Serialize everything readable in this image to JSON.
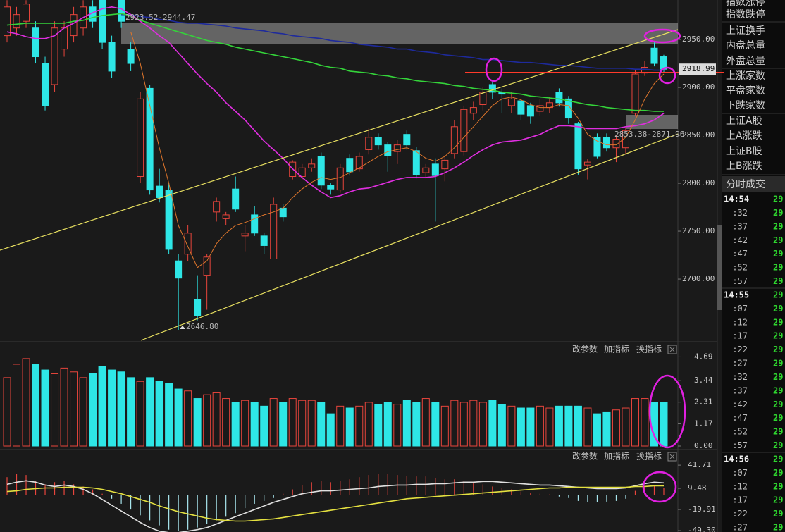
{
  "chart_data": [
    {
      "type": "candlestick",
      "up_color": "#e8453c",
      "down_color": "#2ee6e6",
      "ylim": [
        2634.6,
        2991.2
      ],
      "yticks": [
        {
          "value": 2950,
          "label": "2950.00"
        },
        {
          "value": 2900,
          "label": "2900.00"
        },
        {
          "value": 2850,
          "label": "2850.00"
        },
        {
          "value": 2800,
          "label": "2800.00"
        },
        {
          "value": 2750,
          "label": "2750.00"
        },
        {
          "value": 2700,
          "label": "2700.00"
        }
      ],
      "open": [
        2954,
        2962,
        2969,
        2962,
        2925,
        2903,
        2940,
        2954,
        2962,
        2984,
        2991,
        2947,
        2991,
        2940,
        2807,
        2899,
        2797,
        2793,
        2719,
        2726,
        2679,
        2704,
        2770,
        2763,
        2794,
        2745,
        2767,
        2745,
        2721,
        2774,
        2807,
        2807,
        2816,
        2828,
        2798,
        2793,
        2826,
        2815,
        2835,
        2848,
        2840,
        2833,
        2851,
        2834,
        2811,
        2820,
        2815,
        2831,
        2833,
        2873,
        2882,
        2903,
        2895,
        2881,
        2886,
        2881,
        2875,
        2879,
        2895,
        2888,
        2862,
        2819,
        2848,
        2848,
        2837,
        2837,
        2873,
        2915,
        2941,
        2932
      ],
      "high": [
        2991,
        2984,
        2991,
        2969,
        2932,
        2969,
        2969,
        2984,
        2991,
        2991,
        2991,
        2954,
        2991,
        2947,
        2895,
        2903,
        2815,
        2800,
        2726,
        2756,
        2704,
        2726,
        2785,
        2770,
        2807,
        2756,
        2776,
        2748,
        2785,
        2778,
        2824,
        2820,
        2826,
        2832,
        2800,
        2820,
        2830,
        2832,
        2857,
        2852,
        2843,
        2845,
        2855,
        2838,
        2820,
        2826,
        2829,
        2866,
        2881,
        2885,
        2900,
        2908,
        2899,
        2895,
        2888,
        2884,
        2888,
        2890,
        2899,
        2891,
        2864,
        2825,
        2852,
        2852,
        2850,
        2858,
        2918,
        2928,
        2947,
        2934
      ],
      "low": [
        2947,
        2954,
        2962,
        2925,
        2876,
        2895,
        2932,
        2947,
        2954,
        2962,
        2940,
        2910,
        2962,
        2917,
        2800,
        2788,
        2780,
        2726,
        2646.8,
        2719,
        2657,
        2668,
        2760,
        2756,
        2770,
        2729,
        2745,
        2726,
        2721,
        2760,
        2804,
        2804,
        2812,
        2794,
        2788,
        2790,
        2808,
        2812,
        2830,
        2835,
        2812,
        2820,
        2835,
        2805,
        2805,
        2760,
        2802,
        2826,
        2829,
        2866,
        2876,
        2888,
        2873,
        2873,
        2866,
        2862,
        2870,
        2873,
        2880,
        2862,
        2809,
        2804,
        2826,
        2833,
        2822,
        2830,
        2870,
        2912,
        2922,
        2915
      ],
      "close": [
        2984,
        2976,
        2987,
        2932,
        2881,
        2962,
        2962,
        2976,
        2984,
        2969,
        2947,
        2917,
        2969,
        2925,
        2888,
        2793,
        2785,
        2731,
        2701,
        2748,
        2662,
        2723,
        2781,
        2767,
        2773,
        2748,
        2748,
        2735,
        2778,
        2765,
        2822,
        2816,
        2820,
        2798,
        2794,
        2816,
        2812,
        2828,
        2848,
        2840,
        2829,
        2840,
        2840,
        2809,
        2816,
        2808,
        2824,
        2859,
        2877,
        2879,
        2895,
        2895,
        2893,
        2888,
        2872,
        2870,
        2881,
        2884,
        2884,
        2868,
        2815,
        2822,
        2828,
        2837,
        2846,
        2855,
        2914,
        2921,
        2925,
        2919
      ],
      "lines": [
        {
          "color": "#1e2a9c",
          "values": [
            null,
            null,
            null,
            null,
            null,
            null,
            null,
            null,
            null,
            null,
            null,
            null,
            2976,
            2976,
            2974,
            2973,
            2971,
            2970,
            2968,
            2967,
            2967,
            2966,
            2965,
            2964,
            2962,
            2961,
            2960,
            2959,
            2957,
            2956,
            2954,
            2953,
            2952,
            2951,
            2949,
            2948,
            2947,
            2945,
            2944,
            2943,
            2942,
            2940,
            2940,
            2938,
            2937,
            2936,
            2934,
            2933,
            2932,
            2931,
            2929,
            2929,
            2928,
            2927,
            2926,
            2926,
            2925,
            2924,
            2923,
            2923,
            2922,
            2921,
            2920,
            2920,
            2920,
            2920,
            2919,
            2919,
            2918,
            2918
          ]
        },
        {
          "color": "#34d43a",
          "values": [
            2965,
            2966,
            2967,
            2967,
            2967,
            2967,
            2967,
            2969,
            2970,
            2973,
            2975,
            2976,
            2977,
            2975,
            2970,
            2967,
            2964,
            2961,
            2958,
            2955,
            2952,
            2949,
            2947,
            2945,
            2942,
            2940,
            2938,
            2936,
            2934,
            2932,
            2930,
            2928,
            2926,
            2923,
            2921,
            2920,
            2917,
            2916,
            2915,
            2913,
            2912,
            2910,
            2909,
            2907,
            2906,
            2905,
            2904,
            2902,
            2901,
            2899,
            2898,
            2897,
            2895,
            2894,
            2893,
            2891,
            2890,
            2889,
            2888,
            2886,
            2884,
            2882,
            2881,
            2879,
            2878,
            2877,
            2876,
            2876,
            2875,
            2875
          ]
        },
        {
          "color": "#e02ee0",
          "values": [
            2958,
            2956,
            2953,
            2951,
            2951,
            2954,
            2962,
            2967,
            2973,
            2978,
            2982,
            2984,
            2982,
            2976,
            2969,
            2962,
            2954,
            2947,
            2936,
            2925,
            2914,
            2904,
            2895,
            2884,
            2875,
            2866,
            2855,
            2844,
            2835,
            2826,
            2815,
            2806,
            2798,
            2791,
            2785,
            2787,
            2791,
            2794,
            2795,
            2798,
            2801,
            2804,
            2806,
            2806,
            2806,
            2807,
            2811,
            2816,
            2822,
            2829,
            2835,
            2840,
            2843,
            2844,
            2845,
            2848,
            2851,
            2856,
            2860,
            2860,
            2859,
            2857,
            2857,
            2857,
            2857,
            2859,
            2860,
            2862,
            2866,
            2873
          ]
        },
        {
          "color": "#e0762c",
          "values": [
            null,
            null,
            null,
            null,
            null,
            null,
            null,
            null,
            null,
            null,
            null,
            null,
            null,
            2958,
            2925,
            2881,
            2837,
            2800,
            2756,
            2734,
            2712,
            2719,
            2737,
            2748,
            2756,
            2759,
            2763,
            2767,
            2770,
            2774,
            2785,
            2794,
            2801,
            2806,
            2804,
            2806,
            2811,
            2816,
            2822,
            2828,
            2833,
            2835,
            2837,
            2833,
            2826,
            2823,
            2828,
            2837,
            2848,
            2859,
            2870,
            2881,
            2888,
            2890,
            2887,
            2882,
            2879,
            2879,
            2882,
            2881,
            2868,
            2851,
            2844,
            2840,
            2840,
            2848,
            2866,
            2888,
            2904,
            2914
          ]
        }
      ],
      "last_price": 2918.99,
      "zone_labels": [
        "2923.52-2944.47",
        "2853.38-2871.96"
      ],
      "low_label": "2646.80"
    },
    {
      "type": "bar",
      "up_color": "#e8453c",
      "down_color": "#2ee6e6",
      "ylim": [
        0,
        5.3
      ],
      "yticks": [
        4.69,
        3.44,
        2.31,
        1.17,
        {
          "value": 0,
          "label": "0.00"
        }
      ],
      "values": [
        3.6,
        4.3,
        4.6,
        4.3,
        4.0,
        3.8,
        4.1,
        3.9,
        3.6,
        3.8,
        4.2,
        4.0,
        3.9,
        3.6,
        3.4,
        3.6,
        3.4,
        3.3,
        3.0,
        2.9,
        2.5,
        2.7,
        2.8,
        2.5,
        2.3,
        2.4,
        2.3,
        2.1,
        2.5,
        2.3,
        2.5,
        2.4,
        2.4,
        2.3,
        1.7,
        2.1,
        2.0,
        2.1,
        2.3,
        2.2,
        2.3,
        2.2,
        2.4,
        2.3,
        2.5,
        2.3,
        2.1,
        2.4,
        2.3,
        2.4,
        2.3,
        2.4,
        2.2,
        2.1,
        2.0,
        2.0,
        2.1,
        2.0,
        2.1,
        2.1,
        2.1,
        2.0,
        1.7,
        1.8,
        1.9,
        2.0,
        2.5,
        2.5,
        2.3,
        2.3
      ]
    },
    {
      "type": "macd",
      "up_color": "#e8453c",
      "down_color": "#a8e6ee",
      "ylim": [
        -51.2,
        46.7
      ],
      "yticks": [
        41.71,
        9.48,
        -19.91,
        {
          "value": -49.3,
          "label": "-49.30"
        }
      ],
      "values": [
        25,
        30,
        28,
        20,
        15,
        18,
        20,
        15,
        12,
        8,
        2,
        -5,
        -12,
        -20,
        -28,
        -35,
        -42,
        -48,
        -50,
        -48,
        -45,
        -40,
        -35,
        -30,
        -25,
        -18,
        -12,
        -8,
        -4,
        2,
        8,
        14,
        18,
        20,
        18,
        20,
        22,
        25,
        28,
        30,
        30,
        28,
        27,
        26,
        26,
        24,
        22,
        22,
        20,
        18,
        15,
        12,
        10,
        8,
        5,
        3,
        2,
        1,
        -2,
        -4,
        -8,
        -10,
        -10,
        -9,
        -8,
        -5,
        6,
        12,
        14,
        10
      ],
      "lines": [
        {
          "color": "#e0e0e0",
          "values": [
            15,
            18,
            20,
            18,
            14,
            12,
            14,
            12,
            8,
            2,
            -6,
            -14,
            -22,
            -30,
            -38,
            -45,
            -50,
            -52,
            -52,
            -50,
            -48,
            -45,
            -40,
            -35,
            -30,
            -25,
            -20,
            -15,
            -10,
            -6,
            -2,
            2,
            4,
            6,
            6,
            7,
            8,
            9,
            10,
            12,
            13,
            14,
            14,
            15,
            15,
            16,
            16,
            17,
            18,
            18,
            19,
            19,
            18,
            17,
            16,
            15,
            14,
            14,
            13,
            12,
            11,
            10,
            9,
            9,
            9,
            10,
            13,
            16,
            18,
            17
          ]
        },
        {
          "color": "#e4e040",
          "values": [
            5,
            6,
            8,
            9,
            10,
            10,
            11,
            11,
            11,
            10,
            8,
            5,
            2,
            -2,
            -6,
            -10,
            -15,
            -19,
            -23,
            -26,
            -29,
            -32,
            -34,
            -35,
            -36,
            -36,
            -35,
            -34,
            -33,
            -31,
            -29,
            -27,
            -25,
            -23,
            -21,
            -19,
            -17,
            -15,
            -13,
            -11,
            -9,
            -7,
            -5,
            -4,
            -3,
            -2,
            -1,
            0,
            1,
            2,
            3,
            4,
            5,
            6,
            7,
            8,
            9,
            10,
            10,
            11,
            11,
            11,
            11,
            11,
            11,
            11,
            12,
            12,
            13,
            13
          ]
        }
      ]
    }
  ],
  "toolbars": [
    [
      "改参数",
      "加指标",
      "换指标"
    ],
    [
      "改参数",
      "加指标",
      "换指标"
    ]
  ],
  "side_panel": {
    "indicators": [
      "指数涨停",
      "指数跌停",
      "上证换手",
      "内盘总量",
      "外盘总量",
      "上涨家数",
      "平盘家数",
      "下跌家数",
      "上证A股",
      "上A涨跌",
      "上证B股",
      "上B涨跌"
    ],
    "header": "分时成交",
    "ticks": [
      {
        "time": "14:54",
        "price": "29"
      },
      {
        "time": ":32",
        "price": "29"
      },
      {
        "time": ":37",
        "price": "29"
      },
      {
        "time": ":42",
        "price": "29"
      },
      {
        "time": ":47",
        "price": "29"
      },
      {
        "time": ":52",
        "price": "29"
      },
      {
        "time": ":57",
        "price": "29"
      },
      {
        "time": "14:55",
        "price": "29"
      },
      {
        "time": ":07",
        "price": "29"
      },
      {
        "time": ":12",
        "price": "29"
      },
      {
        "time": ":17",
        "price": "29"
      },
      {
        "time": ":22",
        "price": "29"
      },
      {
        "time": ":27",
        "price": "29"
      },
      {
        "time": ":32",
        "price": "29"
      },
      {
        "time": ":37",
        "price": "29"
      },
      {
        "time": ":42",
        "price": "29"
      },
      {
        "time": ":47",
        "price": "29"
      },
      {
        "time": ":52",
        "price": "29"
      },
      {
        "time": ":57",
        "price": "29"
      },
      {
        "time": "14:56",
        "price": "29"
      },
      {
        "time": ":07",
        "price": "29"
      },
      {
        "time": ":12",
        "price": "29"
      },
      {
        "time": ":17",
        "price": "29"
      },
      {
        "time": ":22",
        "price": "29"
      },
      {
        "time": ":27",
        "price": "29"
      }
    ]
  }
}
